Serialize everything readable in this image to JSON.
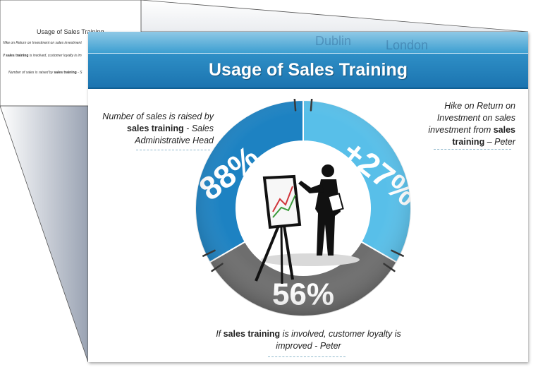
{
  "slide": {
    "title": "Usage of Sales Training",
    "background_words": [
      "Dublin",
      "London"
    ]
  },
  "preview": {
    "title": "Usage of Sales Training",
    "line1": "Hike on Return on Investment on sales investment",
    "line2_bold": "sales training",
    "line2_pre": "If ",
    "line2_post": " is involved, customer loyalty is im",
    "line3_pre": "Number of sales is raised by ",
    "line3_bold": "sales training",
    "line3_post": " - S"
  },
  "captions": {
    "left": {
      "pre": "Number of sales is raised by ",
      "bold": "sales training",
      "post": " - Sales Administrative Head"
    },
    "right": {
      "pre": "Hike on Return on Investment on sales investment from ",
      "bold": "sales training",
      "post": " – Peter"
    },
    "bottom": {
      "pre": "If ",
      "bold": "sales training",
      "post": " is involved, customer loyalty is improved - Peter"
    }
  },
  "chart_data": {
    "type": "pie",
    "segments": [
      {
        "label": "88%",
        "color": "#1d82c2"
      },
      {
        "label": "+27%",
        "color": "#58bfe9"
      },
      {
        "label": "56%",
        "color": "#6e6e6e"
      }
    ]
  },
  "colors": {
    "title_bar": "#1b74b0",
    "dark_blue": "#1d82c2",
    "light_blue": "#58bfe9",
    "gray": "#6e6e6e"
  }
}
